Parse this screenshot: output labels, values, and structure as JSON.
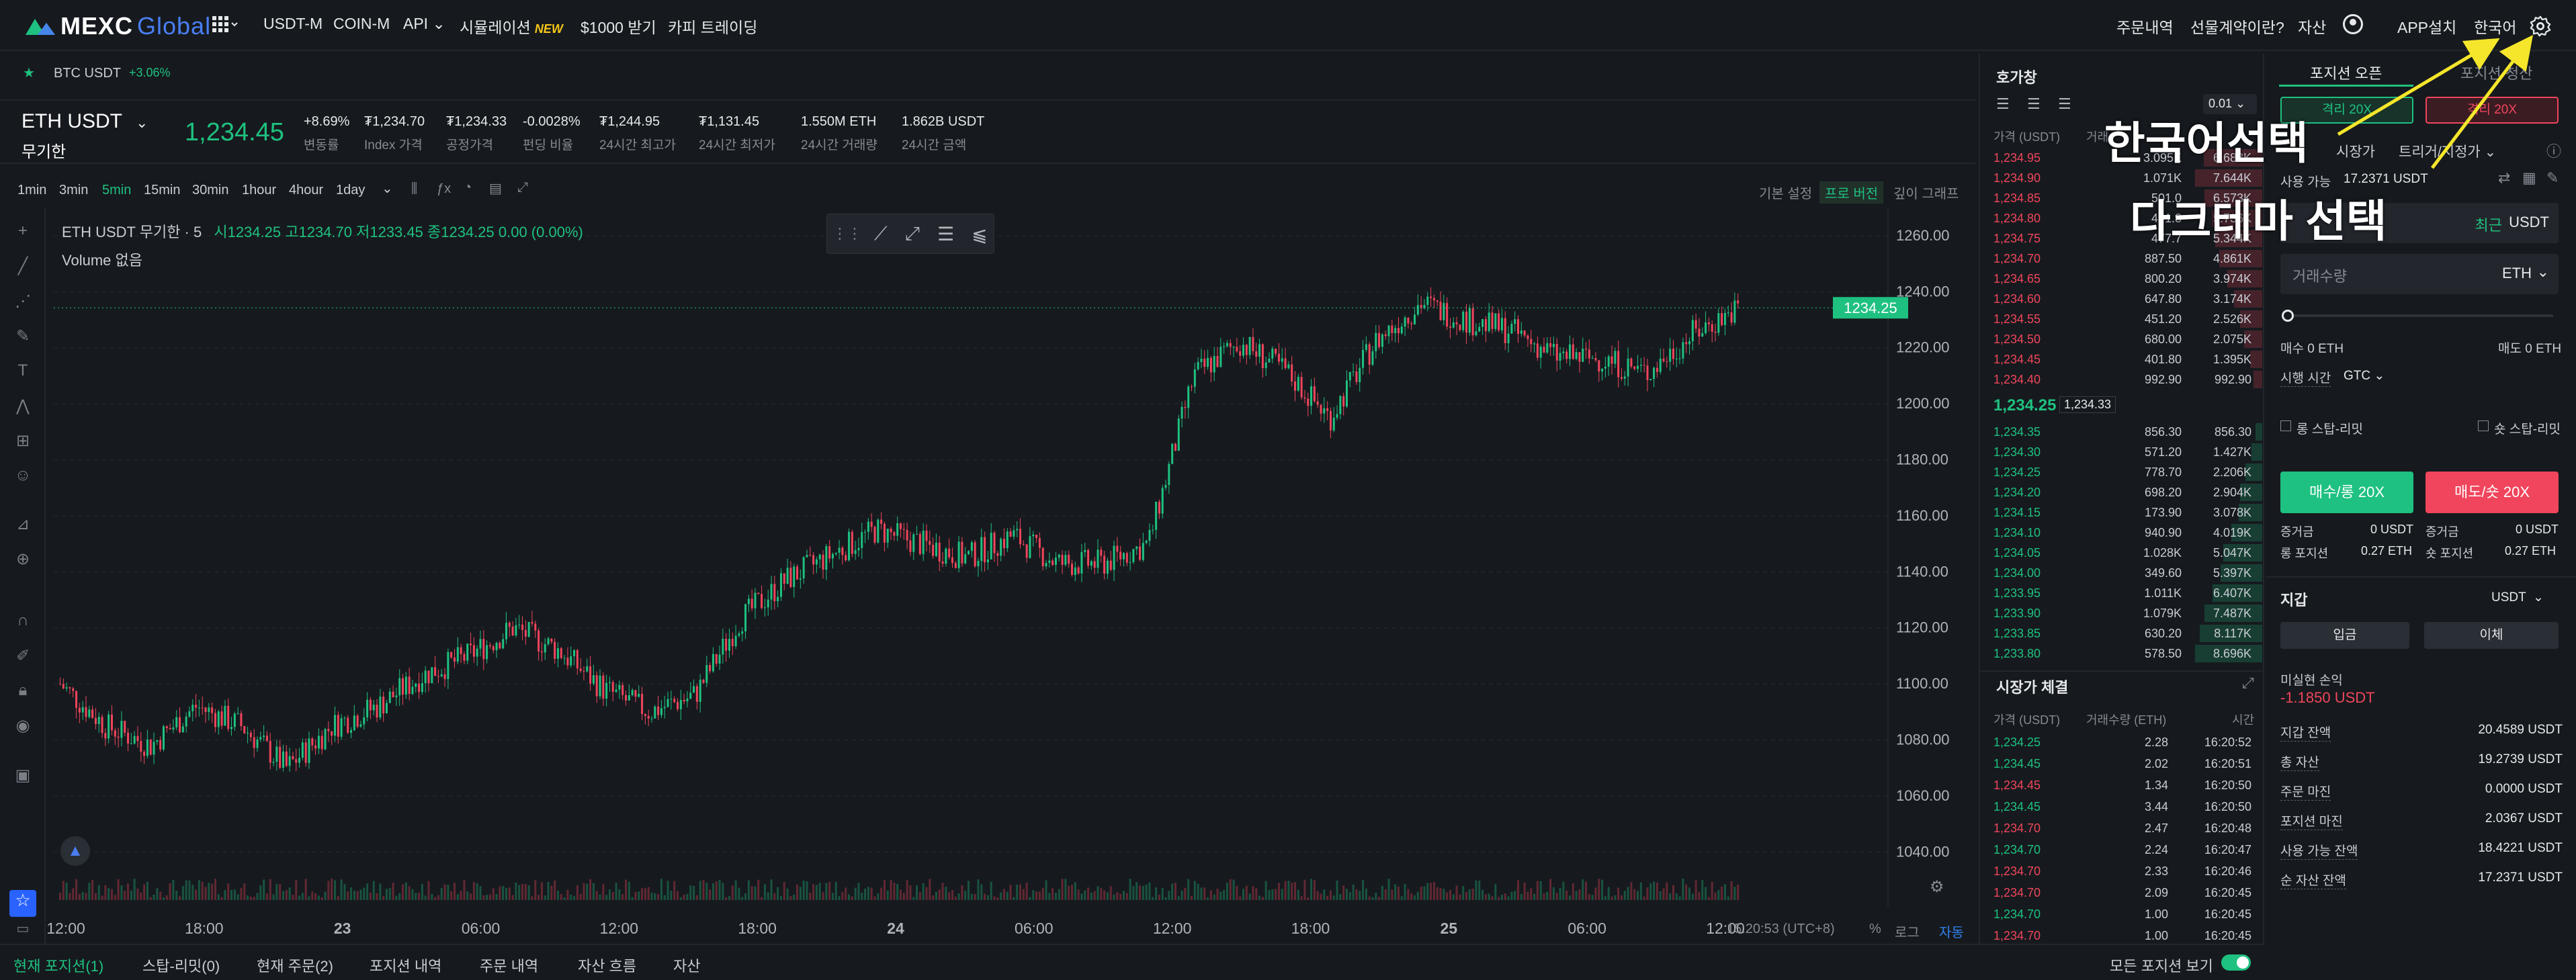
{
  "topbar": {
    "logo": "MEXC",
    "logo_suffix": "Global",
    "nav": [
      "USDT-M",
      "COIN-M",
      "API",
      "시뮬레이션",
      "$1000 받기",
      "카피 트레이딩"
    ],
    "new_badge": "NEW",
    "right": [
      "주문내역",
      "선물계약이란?",
      "자산",
      "APP설치",
      "한국어"
    ]
  },
  "ticker_strip": {
    "symbol": "BTC USDT",
    "change": "+3.06%"
  },
  "header": {
    "pair": "ETH USDT",
    "sub": "무기한",
    "price": "1,234.45",
    "stats": [
      {
        "v": "+8.69%",
        "l": "변동률"
      },
      {
        "v": "₮1,234.70",
        "l": "Index 가격"
      },
      {
        "v": "₮1,234.33",
        "l": "공정가격"
      },
      {
        "v": "-0.0028%",
        "l": "펀딩 비율"
      },
      {
        "v": "₮1,244.95",
        "l": "24시간 최고가"
      },
      {
        "v": "₮1,131.45",
        "l": "24시간 최저가"
      },
      {
        "v": "1.550M ETH",
        "l": "24시간 거래량"
      },
      {
        "v": "1.862B USDT",
        "l": "24시간 금액"
      }
    ]
  },
  "timeframes": [
    "1min",
    "3min",
    "5min",
    "15min",
    "30min",
    "1hour",
    "4hour",
    "1day"
  ],
  "active_timeframe": "5min",
  "chart_views": [
    "기본 설정",
    "프로 버전",
    "깊이 그래프"
  ],
  "chart_legend": {
    "title": "ETH USDT 무기한 · 5",
    "ohlc": "시1234.25 고1234.70 저1233.45 종1234.25 0.00 (0.00%)",
    "volume": "Volume 없음"
  },
  "chart_data": {
    "type": "candlestick",
    "ylim": [
      1030,
      1265
    ],
    "y_ticks": [
      "1260.00",
      "1240.00",
      "1220.00",
      "1200.00",
      "1180.00",
      "1160.00",
      "1140.00",
      "1120.00",
      "1100.00",
      "1080.00",
      "1060.00",
      "1040.00"
    ],
    "x_ticks": [
      "12:00",
      "18:00",
      "23",
      "06:00",
      "12:00",
      "18:00",
      "24",
      "06:00",
      "12:00",
      "18:00",
      "25",
      "06:00",
      "12:00"
    ],
    "trend_close": [
      1100,
      1085,
      1078,
      1092,
      1085,
      1070,
      1085,
      1092,
      1103,
      1110,
      1120,
      1112,
      1098,
      1090,
      1096,
      1123,
      1137,
      1146,
      1155,
      1150,
      1145,
      1153,
      1143,
      1143,
      1150,
      1210,
      1222,
      1212,
      1195,
      1222,
      1236,
      1230,
      1226,
      1217,
      1216,
      1211,
      1225,
      1234
    ],
    "last_price_label": "1234.25"
  },
  "chart_footer": {
    "time": "15:20:53 (UTC+8)",
    "opts": [
      "%",
      "로그",
      "자동"
    ]
  },
  "orderbook": {
    "title": "호가창",
    "precision": "0.01",
    "col_price": "가격 (USDT)",
    "col_amount": "거래",
    "asks": [
      [
        "1,234.95",
        "3.095K",
        "6.688K"
      ],
      [
        "1,234.90",
        "1.071K",
        "7.644K"
      ],
      [
        "1,234.85",
        "501.0",
        "6.573K"
      ],
      [
        "1,234.80",
        "491.8",
        "5.736K"
      ],
      [
        "1,234.75",
        "477.7",
        "5.344K"
      ],
      [
        "1,234.70",
        "887.50",
        "4.861K"
      ],
      [
        "1,234.65",
        "800.20",
        "3.974K"
      ],
      [
        "1,234.60",
        "647.80",
        "3.174K"
      ],
      [
        "1,234.55",
        "451.20",
        "2.526K"
      ],
      [
        "1,234.50",
        "680.00",
        "2.075K"
      ],
      [
        "1,234.45",
        "401.80",
        "1.395K"
      ],
      [
        "1,234.40",
        "992.90",
        "992.90"
      ]
    ],
    "mid_price": "1,234.25",
    "mid_mark": "1,234.33",
    "bids": [
      [
        "1,234.35",
        "856.30",
        "856.30"
      ],
      [
        "1,234.30",
        "571.20",
        "1.427K"
      ],
      [
        "1,234.25",
        "778.70",
        "2.206K"
      ],
      [
        "1,234.20",
        "698.20",
        "2.904K"
      ],
      [
        "1,234.15",
        "173.90",
        "3.078K"
      ],
      [
        "1,234.10",
        "940.90",
        "4.019K"
      ],
      [
        "1,234.05",
        "1.028K",
        "5.047K"
      ],
      [
        "1,234.00",
        "349.60",
        "5.397K"
      ],
      [
        "1,233.95",
        "1.011K",
        "6.407K"
      ],
      [
        "1,233.90",
        "1.079K",
        "7.487K"
      ],
      [
        "1,233.85",
        "630.20",
        "8.117K"
      ],
      [
        "1,233.80",
        "578.50",
        "8.696K"
      ]
    ]
  },
  "trades": {
    "title": "시장가 체결",
    "cols": [
      "가격 (USDT)",
      "거래수량 (ETH)",
      "시간"
    ],
    "rows": [
      [
        "1,234.25",
        "2.28",
        "16:20:52",
        "g"
      ],
      [
        "1,234.45",
        "2.02",
        "16:20:51",
        "g"
      ],
      [
        "1,234.45",
        "1.34",
        "16:20:50",
        "r"
      ],
      [
        "1,234.45",
        "3.44",
        "16:20:50",
        "g"
      ],
      [
        "1,234.70",
        "2.47",
        "16:20:48",
        "r"
      ],
      [
        "1,234.70",
        "2.24",
        "16:20:47",
        "g"
      ],
      [
        "1,234.70",
        "2.33",
        "16:20:46",
        "r"
      ],
      [
        "1,234.70",
        "2.09",
        "16:20:45",
        "r"
      ],
      [
        "1,234.70",
        "1.00",
        "16:20:45",
        "g"
      ],
      [
        "1,234.70",
        "1.00",
        "16:20:45",
        "r"
      ]
    ]
  },
  "panel": {
    "tabs": [
      "포지션 오픈",
      "포지션 청산"
    ],
    "lev_long": "격리 20X",
    "lev_short": "격리 20X",
    "order_types": [
      "시장가",
      "트리거/지정가"
    ],
    "available_label": "사용 가능",
    "available": "17.2371 USDT",
    "price_tag": "최근",
    "price_unit": "USDT",
    "qty_placeholder": "거래수량",
    "qty_unit": "ETH",
    "buy_qty": "매수 0 ETH",
    "sell_qty": "매도 0 ETH",
    "tif_label": "시행 시간",
    "tif": "GTC",
    "long_sltp": "롱 스탑-리밋",
    "short_sltp": "숏 스탑-리밋",
    "buy_btn": "매수/롱 20X",
    "sell_btn": "매도/숏 20X",
    "margin_l": [
      "증거금",
      "0 USDT"
    ],
    "margin_r": [
      "증거금",
      "0 USDT"
    ],
    "pos_l": [
      "롱 포지션",
      "0.27 ETH"
    ],
    "pos_r": [
      "숏 포지션",
      "0.27 ETH"
    ],
    "wallet_title": "지갑",
    "wallet_unit": "USDT",
    "deposit": "입금",
    "transfer": "이체",
    "pnl_label": "미실현 손익",
    "pnl": "-1.1850 USDT",
    "rows": [
      [
        "지갑 잔액",
        "20.4589 USDT"
      ],
      [
        "총 자산",
        "19.2739 USDT"
      ],
      [
        "주문 마진",
        "0.0000 USDT"
      ],
      [
        "포지션 마진",
        "2.0367 USDT"
      ],
      [
        "사용 가능 잔액",
        "18.4221 USDT"
      ],
      [
        "순 자산 잔액",
        "17.2371 USDT"
      ]
    ]
  },
  "bottom_tabs": [
    "현재 포지션(1)",
    "스탑-리밋(0)",
    "현재 주문(2)",
    "포지션 내역",
    "주문 내역",
    "자산 흐름",
    "자산"
  ],
  "bottom_right": "모든 포지션 보기",
  "annotations": [
    "한국어선택",
    "다크테마 선택"
  ]
}
